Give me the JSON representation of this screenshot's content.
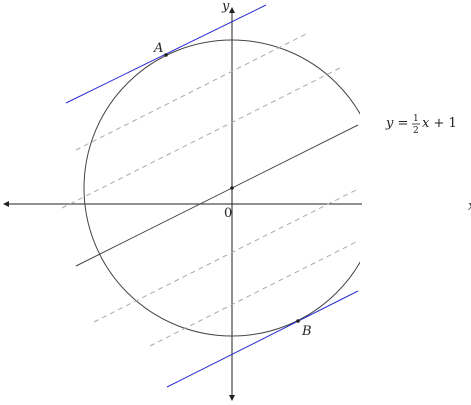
{
  "figure": {
    "axis_labels": {
      "y": "y",
      "x": "x",
      "origin": "0"
    },
    "points": [
      {
        "name": "A"
      },
      {
        "name": "B"
      }
    ],
    "equation": {
      "lhs": "y = ",
      "num": "1",
      "den": "2",
      "rhs": "x + 1"
    },
    "colors": {
      "axes": "#222222",
      "circle": "#444444",
      "main_line": "#444444",
      "tangent_lines": "#2b2bd6",
      "dashed_lines": "#aaaaaa"
    }
  }
}
